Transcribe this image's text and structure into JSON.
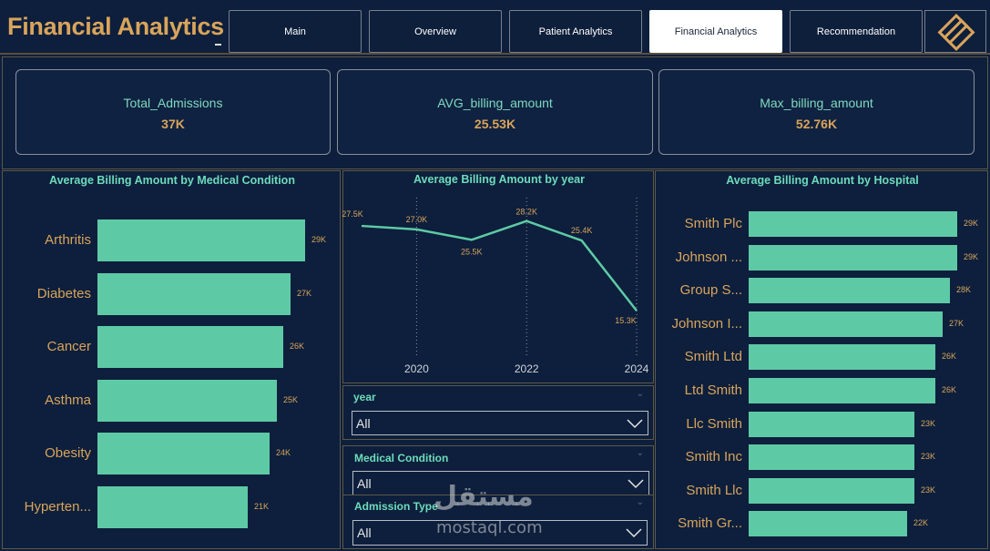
{
  "header": {
    "title": "Financial Analytics",
    "tabs": [
      {
        "label": "Main",
        "active": false
      },
      {
        "label": "Overview",
        "active": false
      },
      {
        "label": "Patient Analytics",
        "active": false
      },
      {
        "label": "Financial Analytics",
        "active": true
      },
      {
        "label": "Recommendation",
        "active": false
      }
    ],
    "logo_icon": "diamond-logo-icon"
  },
  "kpis": [
    {
      "label": "Total_Admissions",
      "value": "37K"
    },
    {
      "label": "AVG_billing_amount",
      "value": "25.53K"
    },
    {
      "label": "Max_billing_amount",
      "value": "52.76K"
    }
  ],
  "colors": {
    "background": "#0d1f3c",
    "accent_gold": "#d9a45b",
    "accent_teal": "#5ecaa5",
    "title_teal": "#6ddbbb"
  },
  "chart_data": [
    {
      "type": "bar",
      "orientation": "horizontal",
      "title": "Average Billing Amount by Medical Condition",
      "categories": [
        "Arthritis",
        "Diabetes",
        "Cancer",
        "Asthma",
        "Obesity",
        "Hyperten..."
      ],
      "values": [
        29,
        27,
        26,
        25,
        24,
        21
      ],
      "labels": [
        "29K",
        "27K",
        "26K",
        "25K",
        "24K",
        "21K"
      ],
      "unit": "K",
      "xlim": [
        0,
        29
      ]
    },
    {
      "type": "line",
      "title": "Average Billing Amount by year",
      "x": [
        2019,
        2020,
        2021,
        2022,
        2023,
        2024
      ],
      "values": [
        27.5,
        27.0,
        25.5,
        28.2,
        25.4,
        15.3
      ],
      "labels": [
        "27.5K",
        "27.0K",
        "25.5K",
        "28.2K",
        "25.4K",
        "15.3K"
      ],
      "xticks": [
        "2020",
        "2022",
        "2024"
      ],
      "ylim": [
        14,
        30
      ]
    },
    {
      "type": "bar",
      "orientation": "horizontal",
      "title": "Average Billing Amount by Hospital",
      "categories": [
        "Smith Plc",
        "Johnson ...",
        "Group S...",
        "Johnson I...",
        "Smith Ltd",
        "Ltd Smith",
        "Llc Smith",
        "Smith Inc",
        "Smith Llc",
        "Smith Gr..."
      ],
      "values": [
        29,
        29,
        28,
        27,
        26,
        26,
        23,
        23,
        23,
        22
      ],
      "labels": [
        "29K",
        "29K",
        "28K",
        "27K",
        "26K",
        "26K",
        "23K",
        "23K",
        "23K",
        "22K"
      ],
      "unit": "K",
      "xlim": [
        0,
        29
      ]
    }
  ],
  "slicers": [
    {
      "title": "year",
      "value": "All"
    },
    {
      "title": "Medical Condition",
      "value": "All"
    },
    {
      "title": "Admission Type",
      "value": "All"
    }
  ],
  "watermark": {
    "arabic": "مستقل",
    "latin": "mostaql.com"
  }
}
